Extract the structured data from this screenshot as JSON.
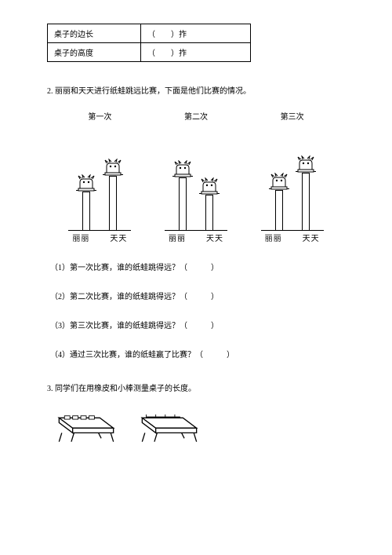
{
  "table": {
    "rows": [
      {
        "label": "桌子的边长",
        "blank": "（　　）拃"
      },
      {
        "label": "桌子的高度",
        "blank": "（　　）拃"
      }
    ]
  },
  "q2": {
    "intro": "2. 丽丽和天天进行纸蛙跳远比赛，下面是他们比赛的情况。",
    "charts": [
      {
        "title": "第一次",
        "heights": [
          70,
          90
        ]
      },
      {
        "title": "第二次",
        "heights": [
          88,
          66
        ]
      },
      {
        "title": "第三次",
        "heights": [
          72,
          94
        ]
      }
    ],
    "names": [
      "丽丽",
      "天天"
    ],
    "subs": [
      "（1）第一次比赛，谁的纸蛙跳得远？（　　　）",
      "（2）第二次比赛，谁的纸蛙跳得远？（　　　）",
      "（3）第三次比赛，谁的纸蛙跳得远？（　　　）",
      "（4）通过三次比赛，谁的纸蛙赢了比赛？（　　　）"
    ]
  },
  "q3": {
    "intro": "3. 同学们在用橡皮和小棒测量桌子的长度。"
  },
  "style": {
    "stroke": "#000000",
    "fill_white": "#ffffff"
  }
}
